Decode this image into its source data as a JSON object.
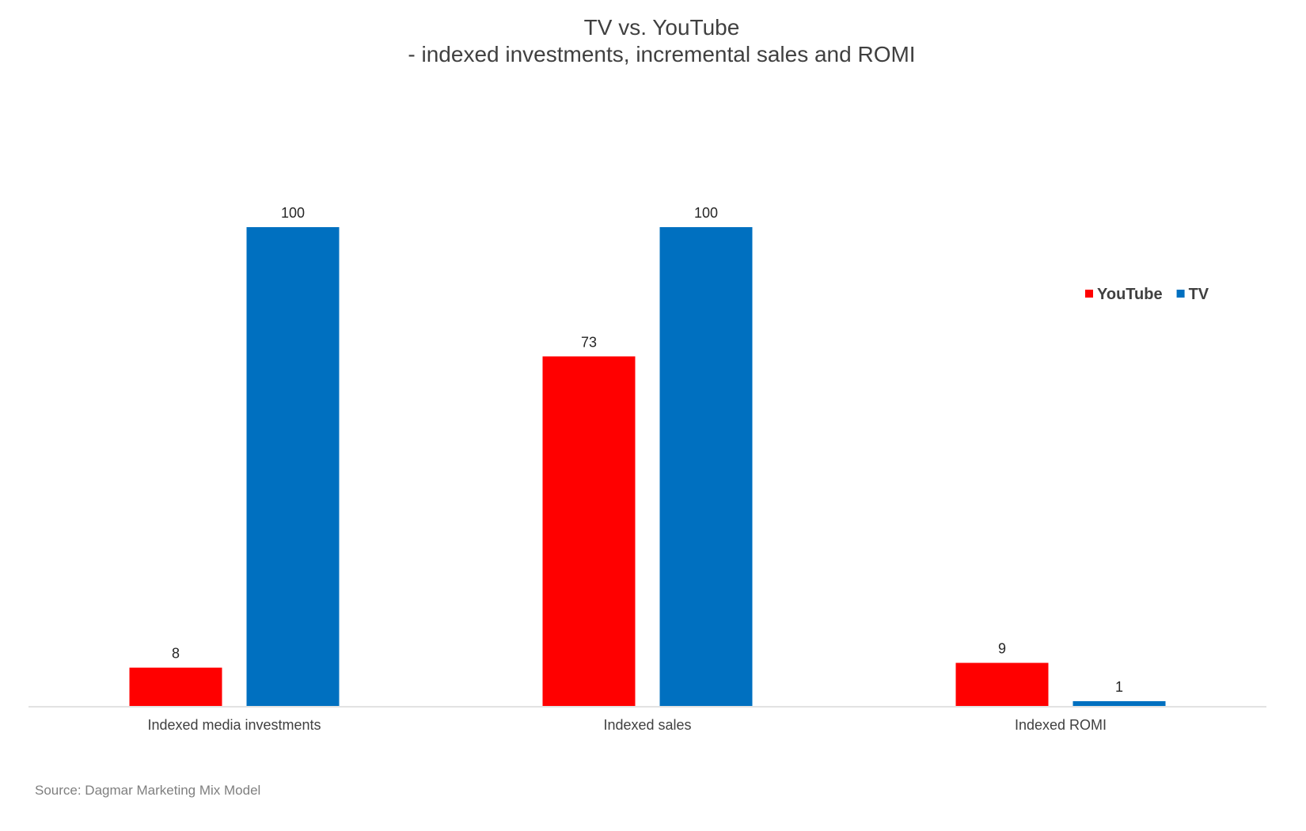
{
  "chart_data": {
    "type": "bar",
    "title": "TV vs. YouTube",
    "subtitle": "- indexed investments, incremental sales and ROMI",
    "categories": [
      "Indexed media investments",
      "Indexed sales",
      "Indexed ROMI"
    ],
    "series": [
      {
        "name": "YouTube",
        "color": "#ff0000",
        "values": [
          8,
          73,
          9
        ]
      },
      {
        "name": "TV",
        "color": "#0070c0",
        "values": [
          100,
          100,
          1
        ]
      }
    ],
    "ylim": [
      0,
      100
    ],
    "grid": false,
    "legend": "top-right",
    "xlabel": "",
    "ylabel": ""
  },
  "source": "Source: Dagmar Marketing Mix Model"
}
